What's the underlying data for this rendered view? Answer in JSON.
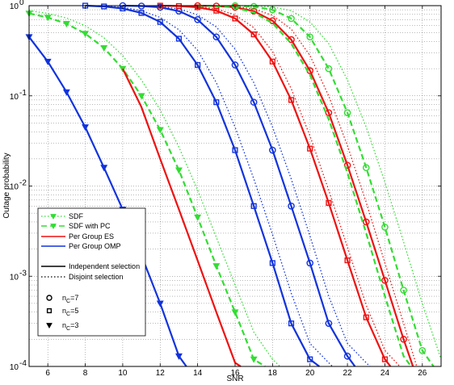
{
  "chart_data": {
    "type": "line",
    "title": "",
    "xlabel": "SNR",
    "ylabel": "Outage probability",
    "xlim": [
      5,
      27
    ],
    "ylim": [
      0.0001,
      1
    ],
    "yscale": "log",
    "grid": true,
    "legend_position": "lower-left",
    "x_ticks": [
      6,
      8,
      10,
      12,
      14,
      16,
      18,
      20,
      22,
      24,
      26
    ],
    "y_ticks": [
      {
        "value": 1,
        "mantissa": "10",
        "exp": "0"
      },
      {
        "value": 0.1,
        "mantissa": "10",
        "exp": "-1"
      },
      {
        "value": 0.01,
        "mantissa": "10",
        "exp": "-2"
      },
      {
        "value": 0.001,
        "mantissa": "10",
        "exp": "-3"
      },
      {
        "value": 0.0001,
        "mantissa": "10",
        "exp": "-4"
      }
    ],
    "legend": [
      {
        "label": "SDF",
        "color": "#33dd33",
        "style": "dotted",
        "marker": "triangle"
      },
      {
        "label": "SDF with PC",
        "color": "#33dd33",
        "style": "dashed",
        "marker": "triangle"
      },
      {
        "label": "Per Group ES",
        "color": "#ee1111",
        "style": "solid",
        "marker": "none"
      },
      {
        "label": "Per Group OMP",
        "color": "#1133dd",
        "style": "solid",
        "marker": "none"
      },
      {
        "label": "Independent selection",
        "color": "#000000",
        "style": "solid",
        "marker": "none"
      },
      {
        "label": "Disjoint selection",
        "color": "#000000",
        "style": "dotted",
        "marker": "none"
      },
      {
        "label": "n",
        "sub": "C",
        "suffix": "=7",
        "color": "#000000",
        "style": "none",
        "marker": "circle"
      },
      {
        "label": "n",
        "sub": "C",
        "suffix": "=5",
        "color": "#000000",
        "style": "none",
        "marker": "square"
      },
      {
        "label": "n",
        "sub": "C",
        "suffix": "=3",
        "color": "#000000",
        "style": "none",
        "marker": "triangle"
      }
    ],
    "colors": {
      "sdf": "#33dd33",
      "es": "#ee1111",
      "omp": "#1133dd"
    },
    "series": [
      {
        "group": "omp",
        "n_c": 3,
        "selection": "independent",
        "color": "#1133dd",
        "style": "solid",
        "marker": "triangle",
        "x": [
          5,
          6,
          7,
          8,
          9,
          10,
          11,
          12,
          13,
          13.4
        ],
        "y": [
          0.45,
          0.24,
          0.11,
          0.045,
          0.016,
          0.0055,
          0.0017,
          0.0005,
          0.00013,
          0.0001
        ]
      },
      {
        "group": "sdf",
        "n_c": 3,
        "selection": "independent",
        "color": "#33dd33",
        "style": "dashed",
        "marker": "triangle",
        "x": [
          5,
          6,
          7,
          8,
          9,
          10,
          11,
          12,
          13,
          14,
          15,
          16,
          17,
          17.6
        ],
        "y": [
          0.82,
          0.74,
          0.63,
          0.49,
          0.34,
          0.2,
          0.1,
          0.042,
          0.015,
          0.0045,
          0.0013,
          0.0004,
          0.00012,
          0.0001
        ]
      },
      {
        "group": "sdf",
        "n_c": 3,
        "selection": "disjoint",
        "color": "#33dd33",
        "style": "dotted",
        "marker": "none",
        "x": [
          5,
          6,
          7,
          8,
          9,
          10,
          11,
          12,
          13,
          14,
          15,
          16,
          17,
          18,
          18.4
        ],
        "y": [
          0.88,
          0.82,
          0.73,
          0.6,
          0.44,
          0.28,
          0.15,
          0.07,
          0.027,
          0.009,
          0.0027,
          0.0008,
          0.00024,
          0.00012,
          0.0001
        ]
      },
      {
        "group": "es",
        "n_c": 3,
        "selection": "independent",
        "color": "#ee1111",
        "style": "solid",
        "marker": "none",
        "x": [
          10,
          11,
          12,
          13,
          14,
          15,
          16,
          16.3
        ],
        "y": [
          0.2,
          0.075,
          0.02,
          0.0055,
          0.0015,
          0.0004,
          0.00011,
          0.0001
        ]
      },
      {
        "group": "omp",
        "n_c": 5,
        "selection": "independent",
        "color": "#1133dd",
        "style": "solid",
        "marker": "square",
        "x": [
          8,
          9,
          10,
          11,
          12,
          13,
          14,
          15,
          16,
          17,
          18,
          19,
          20,
          20.5
        ],
        "y": [
          1,
          0.98,
          0.93,
          0.83,
          0.66,
          0.43,
          0.22,
          0.085,
          0.025,
          0.006,
          0.0014,
          0.0003,
          0.00012,
          0.0001
        ]
      },
      {
        "group": "omp",
        "n_c": 5,
        "selection": "disjoint",
        "color": "#1133dd",
        "style": "dotted",
        "marker": "none",
        "x": [
          8,
          9,
          10,
          11,
          12,
          13,
          14,
          15,
          16,
          17,
          18,
          19,
          20,
          21,
          21.2
        ],
        "y": [
          1,
          0.99,
          0.96,
          0.88,
          0.74,
          0.54,
          0.32,
          0.14,
          0.045,
          0.012,
          0.0029,
          0.00065,
          0.00018,
          0.00011,
          0.0001
        ]
      },
      {
        "group": "omp",
        "n_c": 7,
        "selection": "independent",
        "color": "#1133dd",
        "style": "solid",
        "marker": "circle",
        "x": [
          10,
          11,
          12,
          13,
          14,
          15,
          16,
          17,
          18,
          19,
          20,
          21,
          22,
          22.4
        ],
        "y": [
          1,
          0.99,
          0.96,
          0.87,
          0.7,
          0.45,
          0.22,
          0.085,
          0.025,
          0.006,
          0.0014,
          0.0003,
          0.00013,
          0.0001
        ]
      },
      {
        "group": "omp",
        "n_c": 7,
        "selection": "disjoint",
        "color": "#1133dd",
        "style": "dotted",
        "marker": "none",
        "x": [
          10,
          11,
          12,
          13,
          14,
          15,
          16,
          17,
          18,
          19,
          20,
          21,
          22,
          23,
          23.2
        ],
        "y": [
          1,
          1,
          0.98,
          0.92,
          0.79,
          0.58,
          0.33,
          0.14,
          0.045,
          0.012,
          0.0028,
          0.0006,
          0.00018,
          0.00011,
          0.0001
        ]
      },
      {
        "group": "es",
        "n_c": 5,
        "selection": "independent",
        "color": "#ee1111",
        "style": "solid",
        "marker": "square",
        "x": [
          12,
          13,
          14,
          15,
          16,
          17,
          18,
          19,
          20,
          21,
          22,
          23,
          24,
          24.3
        ],
        "y": [
          1,
          0.99,
          0.96,
          0.88,
          0.72,
          0.48,
          0.24,
          0.09,
          0.026,
          0.0065,
          0.0015,
          0.00035,
          0.00012,
          0.0001
        ]
      },
      {
        "group": "es",
        "n_c": 5,
        "selection": "disjoint",
        "color": "#ee1111",
        "style": "dotted",
        "marker": "none",
        "x": [
          12,
          13,
          14,
          15,
          16,
          17,
          18,
          19,
          20,
          21,
          22,
          23,
          24,
          24.8
        ],
        "y": [
          1,
          1,
          0.98,
          0.92,
          0.79,
          0.57,
          0.31,
          0.12,
          0.036,
          0.009,
          0.0021,
          0.00048,
          0.00015,
          0.0001
        ]
      },
      {
        "group": "es",
        "n_c": 7,
        "selection": "independent",
        "color": "#ee1111",
        "style": "solid",
        "marker": "circle",
        "x": [
          14,
          15,
          16,
          17,
          18,
          19,
          20,
          21,
          22,
          23,
          24,
          25,
          25.5
        ],
        "y": [
          1,
          0.99,
          0.96,
          0.87,
          0.68,
          0.42,
          0.19,
          0.065,
          0.017,
          0.004,
          0.0009,
          0.0002,
          0.0001
        ]
      },
      {
        "group": "es",
        "n_c": 7,
        "selection": "disjoint",
        "color": "#ee1111",
        "style": "dotted",
        "marker": "none",
        "x": [
          14,
          15,
          16,
          17,
          18,
          19,
          20,
          21,
          22,
          23,
          24,
          25,
          25.7
        ],
        "y": [
          1,
          1,
          0.98,
          0.92,
          0.78,
          0.55,
          0.28,
          0.1,
          0.028,
          0.0066,
          0.0014,
          0.0003,
          0.0001
        ]
      },
      {
        "group": "sdf",
        "n_c": 5,
        "selection": "independent",
        "color": "#33dd33",
        "style": "dashed",
        "marker": "none",
        "x": [
          14,
          15,
          16,
          17,
          18,
          19,
          20,
          21,
          22,
          23,
          24,
          25,
          25.4
        ],
        "y": [
          1,
          0.99,
          0.95,
          0.84,
          0.64,
          0.38,
          0.17,
          0.055,
          0.014,
          0.003,
          0.0006,
          0.00013,
          0.0001
        ]
      },
      {
        "group": "sdf",
        "n_c": 7,
        "selection": "independent",
        "color": "#33dd33",
        "style": "dashed",
        "marker": "circle",
        "x": [
          16,
          17,
          18,
          19,
          20,
          21,
          22,
          23,
          24,
          25,
          26,
          26.6
        ],
        "y": [
          1,
          0.98,
          0.9,
          0.72,
          0.45,
          0.2,
          0.065,
          0.016,
          0.0035,
          0.0007,
          0.00015,
          0.0001
        ]
      },
      {
        "group": "sdf",
        "n_c": 7,
        "selection": "disjoint",
        "color": "#33dd33",
        "style": "dotted",
        "marker": "none",
        "x": [
          16,
          17,
          18,
          19,
          20,
          21,
          22,
          23,
          24,
          25,
          26,
          27
        ],
        "y": [
          1,
          1,
          0.97,
          0.88,
          0.66,
          0.38,
          0.15,
          0.045,
          0.011,
          0.0024,
          0.0005,
          0.00012
        ]
      }
    ]
  }
}
